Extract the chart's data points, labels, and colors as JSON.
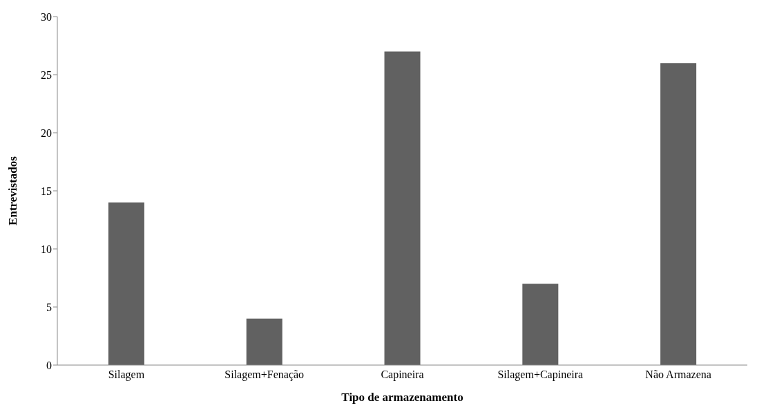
{
  "chart_data": {
    "type": "bar",
    "xlabel": "Tipo de armazenamento",
    "ylabel": "Entrevistados",
    "categories": [
      "Silagem",
      "Silagem+Fenação",
      "Capineira",
      "Silagem+Capineira",
      "Não Armazena"
    ],
    "values": [
      14,
      4,
      27,
      7,
      26
    ],
    "color": "#616161",
    "ylim": [
      0,
      30
    ],
    "yticks": [
      0,
      5,
      10,
      15,
      20,
      25,
      30
    ],
    "grid": false,
    "legend": false
  }
}
